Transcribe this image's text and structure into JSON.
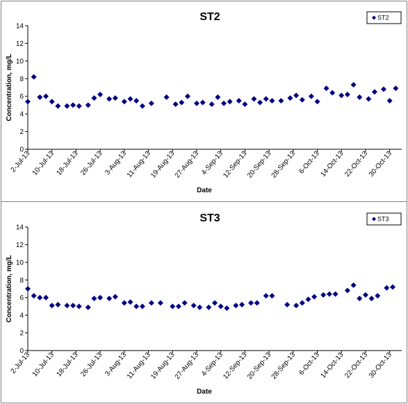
{
  "chart_data": [
    {
      "type": "scatter",
      "title": "ST2",
      "xlabel": "Date",
      "ylabel": "Concentration, mg/L",
      "ylim": [
        0,
        14
      ],
      "yticks": [
        0,
        2,
        4,
        6,
        8,
        10,
        12,
        14
      ],
      "xlim": [
        "2-Jul-13",
        "3-Nov-13"
      ],
      "xticks": [
        "2-Jul-13",
        "10-Jul-13",
        "18-Jul-13",
        "26-Jul-13",
        "3-Aug-13",
        "11-Aug-13",
        "19-Aug-13",
        "27-Aug-13",
        "4-Sep-13",
        "12-Sep-13",
        "20-Sep-13",
        "28-Sep-13",
        "6-Oct-13",
        "14-Oct-13",
        "22-Oct-13",
        "30-Oct-13"
      ],
      "grid": false,
      "legend_position": "top-right",
      "marker_color": "#000080",
      "series": [
        {
          "name": "ST2",
          "x": [
            "2-Jul-13",
            "4-Jul-13",
            "6-Jul-13",
            "8-Jul-13",
            "10-Jul-13",
            "12-Jul-13",
            "15-Jul-13",
            "17-Jul-13",
            "19-Jul-13",
            "22-Jul-13",
            "24-Jul-13",
            "26-Jul-13",
            "29-Jul-13",
            "31-Jul-13",
            "3-Aug-13",
            "5-Aug-13",
            "7-Aug-13",
            "9-Aug-13",
            "12-Aug-13",
            "17-Aug-13",
            "20-Aug-13",
            "22-Aug-13",
            "24-Aug-13",
            "27-Aug-13",
            "29-Aug-13",
            "1-Sep-13",
            "3-Sep-13",
            "5-Sep-13",
            "7-Sep-13",
            "10-Sep-13",
            "12-Sep-13",
            "15-Sep-13",
            "17-Sep-13",
            "19-Sep-13",
            "21-Sep-13",
            "24-Sep-13",
            "27-Sep-13",
            "29-Sep-13",
            "1-Oct-13",
            "4-Oct-13",
            "6-Oct-13",
            "9-Oct-13",
            "11-Oct-13",
            "14-Oct-13",
            "16-Oct-13",
            "18-Oct-13",
            "20-Oct-13",
            "23-Oct-13",
            "25-Oct-13",
            "28-Oct-13",
            "30-Oct-13",
            "1-Nov-13"
          ],
          "y": [
            5.4,
            8.2,
            5.9,
            6.0,
            5.4,
            4.9,
            4.9,
            5.0,
            4.9,
            5.0,
            5.8,
            6.2,
            5.7,
            5.8,
            5.4,
            5.7,
            5.5,
            4.9,
            5.2,
            5.9,
            5.1,
            5.3,
            6.0,
            5.2,
            5.3,
            5.1,
            5.9,
            5.2,
            5.4,
            5.5,
            5.1,
            5.7,
            5.3,
            5.7,
            5.5,
            5.5,
            5.8,
            6.1,
            5.6,
            6.0,
            5.4,
            6.9,
            6.4,
            6.1,
            6.2,
            7.3,
            5.9,
            5.7,
            6.5,
            6.8,
            5.5,
            6.9
          ]
        }
      ]
    },
    {
      "type": "scatter",
      "title": "ST3",
      "xlabel": "Date",
      "ylabel": "Concentration, mg/L",
      "ylim": [
        0,
        14
      ],
      "yticks": [
        0,
        2,
        4,
        6,
        8,
        10,
        12,
        14
      ],
      "xlim": [
        "2-Jul-13",
        "3-Nov-13"
      ],
      "xticks": [
        "2-Jul-13",
        "10-Jul-13",
        "18-Jul-13",
        "26-Jul-13",
        "3-Aug-13",
        "11-Aug-13",
        "19-Aug-13",
        "27-Aug-13",
        "4-Sep-13",
        "12-Sep-13",
        "20-Sep-13",
        "28-Sep-13",
        "6-Oct-13",
        "14-Oct-13",
        "22-Oct-13",
        "30-Oct-13"
      ],
      "grid": false,
      "legend_position": "top-right",
      "marker_color": "#000080",
      "series": [
        {
          "name": "ST3",
          "x": [
            "2-Jul-13",
            "4-Jul-13",
            "6-Jul-13",
            "8-Jul-13",
            "10-Jul-13",
            "12-Jul-13",
            "15-Jul-13",
            "17-Jul-13",
            "19-Jul-13",
            "22-Jul-13",
            "24-Jul-13",
            "26-Jul-13",
            "29-Jul-13",
            "31-Jul-13",
            "3-Aug-13",
            "5-Aug-13",
            "7-Aug-13",
            "9-Aug-13",
            "12-Aug-13",
            "15-Aug-13",
            "19-Aug-13",
            "21-Aug-13",
            "23-Aug-13",
            "26-Aug-13",
            "28-Aug-13",
            "31-Aug-13",
            "2-Sep-13",
            "4-Sep-13",
            "6-Sep-13",
            "9-Sep-13",
            "11-Sep-13",
            "14-Sep-13",
            "16-Sep-13",
            "19-Sep-13",
            "21-Sep-13",
            "26-Sep-13",
            "29-Sep-13",
            "1-Oct-13",
            "3-Oct-13",
            "5-Oct-13",
            "8-Oct-13",
            "10-Oct-13",
            "12-Oct-13",
            "16-Oct-13",
            "18-Oct-13",
            "20-Oct-13",
            "22-Oct-13",
            "24-Oct-13",
            "26-Oct-13",
            "29-Oct-13",
            "31-Oct-13"
          ],
          "y": [
            7.0,
            6.2,
            6.0,
            6.0,
            5.1,
            5.2,
            5.1,
            5.1,
            5.0,
            4.9,
            5.9,
            6.0,
            5.9,
            6.1,
            5.4,
            5.5,
            5.0,
            5.0,
            5.4,
            5.4,
            5.0,
            5.0,
            5.4,
            5.1,
            4.9,
            4.9,
            5.4,
            5.0,
            4.8,
            5.1,
            5.2,
            5.4,
            5.4,
            6.2,
            6.2,
            5.2,
            5.1,
            5.4,
            5.8,
            6.1,
            6.3,
            6.4,
            6.4,
            6.8,
            7.4,
            5.9,
            6.3,
            5.9,
            6.2,
            7.1,
            7.2
          ]
        }
      ]
    }
  ]
}
